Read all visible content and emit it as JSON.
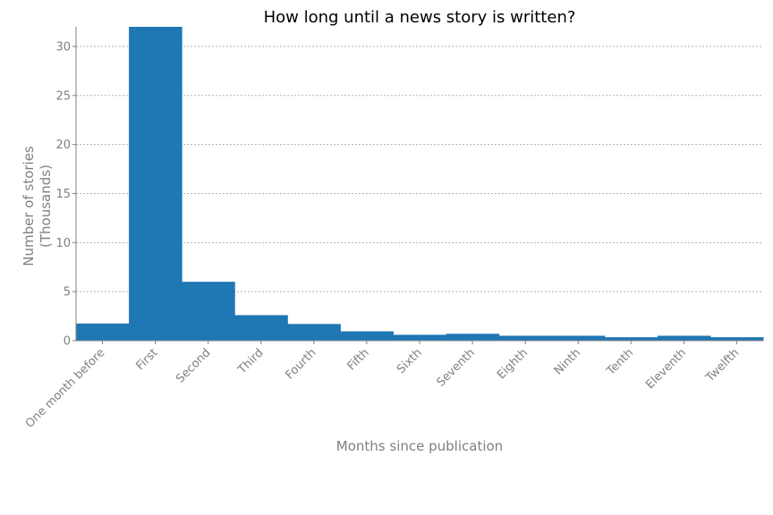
{
  "chart_data": {
    "type": "bar",
    "title": "How long until a news story is written?",
    "xlabel": "Months since publication",
    "ylabel": [
      "Number of stories",
      "(Thousands)"
    ],
    "categories": [
      "One month before",
      "First",
      "Second",
      "Third",
      "Fourth",
      "Fifth",
      "Sixth",
      "Seventh",
      "Eighth",
      "Ninth",
      "Tenth",
      "Eleventh",
      "Twelfth"
    ],
    "values": [
      1.75,
      32.0,
      6.0,
      2.6,
      1.7,
      0.95,
      0.6,
      0.7,
      0.5,
      0.5,
      0.35,
      0.5,
      0.35
    ],
    "ylim": [
      0,
      32
    ],
    "yticks": [
      0,
      5,
      10,
      15,
      20,
      25,
      30
    ],
    "grid": true,
    "bar_color": "#1f77b4",
    "text_color": "#808080"
  }
}
